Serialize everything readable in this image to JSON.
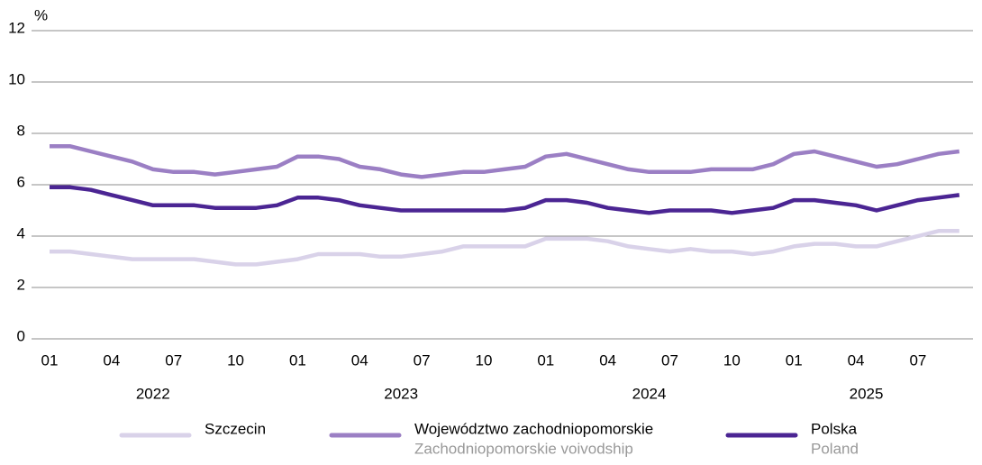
{
  "chart_data": {
    "type": "line",
    "y_label": "%",
    "categories": [
      "01",
      null,
      null,
      "04",
      null,
      null,
      "07",
      null,
      null,
      "10",
      null,
      null,
      "01",
      null,
      null,
      "04",
      null,
      null,
      "07",
      null,
      null,
      "10",
      null,
      null,
      "01",
      null,
      null,
      "04",
      null,
      null,
      "07",
      null,
      null,
      "10",
      null,
      null,
      "01",
      null,
      null,
      "04",
      null,
      null,
      "07",
      null,
      null
    ],
    "year_labels": [
      "2022",
      "2023",
      "2024",
      "2025"
    ],
    "series": [
      {
        "name": "Szczecin",
        "color": "#d9d2e9",
        "values": [
          3.4,
          3.4,
          3.3,
          3.2,
          3.1,
          3.1,
          3.1,
          3.1,
          3.0,
          2.9,
          2.9,
          3.0,
          3.1,
          3.3,
          3.3,
          3.3,
          3.2,
          3.2,
          3.3,
          3.4,
          3.6,
          3.6,
          3.6,
          3.6,
          3.9,
          3.9,
          3.9,
          3.8,
          3.6,
          3.5,
          3.4,
          3.5,
          3.4,
          3.4,
          3.3,
          3.4,
          3.6,
          3.7,
          3.7,
          3.6,
          3.6,
          3.8,
          4.0,
          4.2,
          4.2
        ]
      },
      {
        "name": "Województwo zachodniopomorskie",
        "name_en": "Zachodniopomorskie voivodship",
        "color": "#9b7fc4",
        "values": [
          7.5,
          7.5,
          7.3,
          7.1,
          6.9,
          6.6,
          6.5,
          6.5,
          6.4,
          6.5,
          6.6,
          6.7,
          7.1,
          7.1,
          7.0,
          6.7,
          6.6,
          6.4,
          6.3,
          6.4,
          6.5,
          6.5,
          6.6,
          6.7,
          7.1,
          7.2,
          7.0,
          6.8,
          6.6,
          6.5,
          6.5,
          6.5,
          6.6,
          6.6,
          6.6,
          6.8,
          7.2,
          7.3,
          7.1,
          6.9,
          6.7,
          6.8,
          7.0,
          7.2,
          7.3
        ]
      },
      {
        "name": "Polska",
        "name_en": "Poland",
        "color": "#4b2593",
        "values": [
          5.9,
          5.9,
          5.8,
          5.6,
          5.4,
          5.2,
          5.2,
          5.2,
          5.1,
          5.1,
          5.1,
          5.2,
          5.5,
          5.5,
          5.4,
          5.2,
          5.1,
          5.0,
          5.0,
          5.0,
          5.0,
          5.0,
          5.0,
          5.1,
          5.4,
          5.4,
          5.3,
          5.1,
          5.0,
          4.9,
          5.0,
          5.0,
          5.0,
          4.9,
          5.0,
          5.1,
          5.4,
          5.4,
          5.3,
          5.2,
          5.0,
          5.2,
          5.4,
          5.5,
          5.6
        ]
      }
    ],
    "ylim": [
      0,
      12
    ],
    "yticks": [
      0,
      2,
      4,
      6,
      8,
      10,
      12
    ],
    "grid": true
  }
}
